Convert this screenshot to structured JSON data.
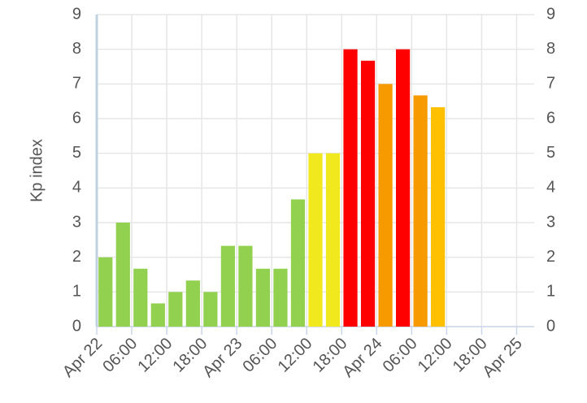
{
  "chart_data": {
    "type": "bar",
    "y_label": "Kp index",
    "x": [
      1.5,
      4.5,
      7.5,
      10.5,
      13.5,
      16.5,
      19.5,
      22.5,
      25.5,
      28.5,
      31.5,
      34.5,
      37.5,
      40.5,
      43.5,
      46.5,
      49.5,
      52.5,
      55.5,
      58.5
    ],
    "values": [
      2,
      3,
      1.67,
      0.67,
      1,
      1.33,
      1,
      2.33,
      2.33,
      1.67,
      1.67,
      3.67,
      5,
      5,
      8,
      7.67,
      7,
      8,
      6.67,
      6.33
    ],
    "colors": [
      "#92d050",
      "#92d050",
      "#92d050",
      "#92d050",
      "#92d050",
      "#92d050",
      "#92d050",
      "#92d050",
      "#92d050",
      "#92d050",
      "#92d050",
      "#92d050",
      "#f2e81e",
      "#f2e81e",
      "#ff0000",
      "#ff0000",
      "#f79a00",
      "#ff0000",
      "#f79a00",
      "#ffc000"
    ],
    "xlim": [
      0,
      75
    ],
    "xticks": [
      {
        "value": 0,
        "label": "Apr 22"
      },
      {
        "value": 6,
        "label": "06:00"
      },
      {
        "value": 12,
        "label": "12:00"
      },
      {
        "value": 18,
        "label": "18:00"
      },
      {
        "value": 24,
        "label": "Apr 23"
      },
      {
        "value": 30,
        "label": "06:00"
      },
      {
        "value": 36,
        "label": "12:00"
      },
      {
        "value": 42,
        "label": "18:00"
      },
      {
        "value": 48,
        "label": "Apr 24"
      },
      {
        "value": 54,
        "label": "06:00"
      },
      {
        "value": 60,
        "label": "12:00"
      },
      {
        "value": 66,
        "label": "18:00"
      },
      {
        "value": 72,
        "label": "Apr 25"
      }
    ],
    "ylim": [
      0,
      9
    ],
    "yticks": [
      0,
      1,
      2,
      3,
      4,
      5,
      6,
      7,
      8,
      9
    ],
    "grid": true,
    "right_axis": true
  }
}
